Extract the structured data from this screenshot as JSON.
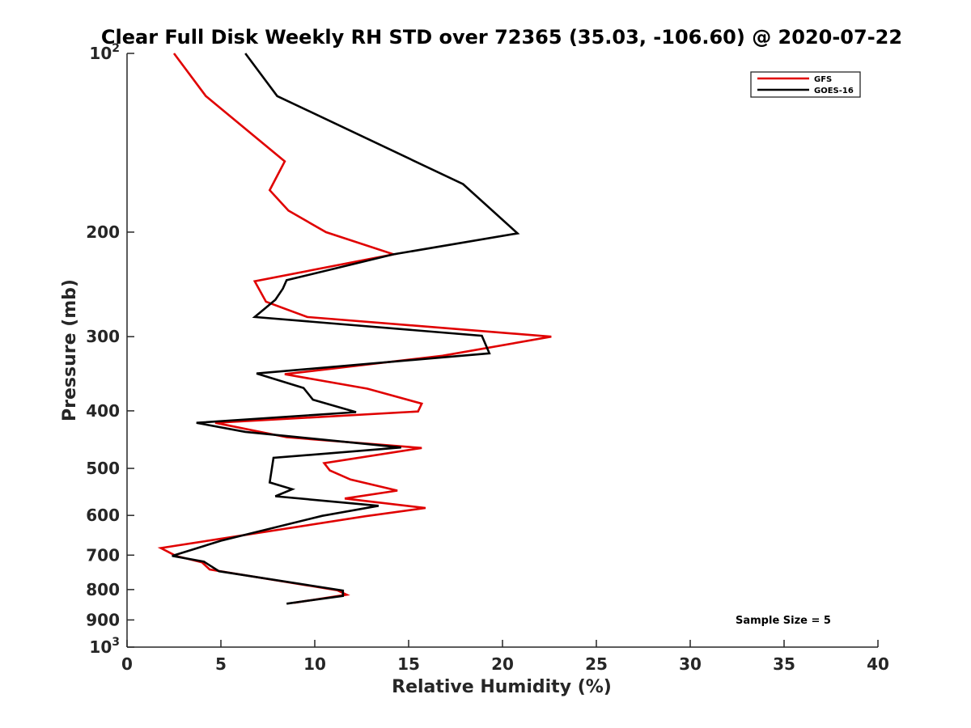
{
  "chart_data": {
    "type": "line",
    "title": "Clear Full Disk Weekly RH STD over 72365 (35.03, -106.60) @ 2020-07-22",
    "xlabel": "Relative Humidity (%)",
    "ylabel": "Pressure (mb)",
    "xlim": [
      0,
      40
    ],
    "ylim": [
      100,
      1000
    ],
    "yscale": "log",
    "y_reversed": true,
    "grid": false,
    "legend_position": "top-right",
    "x_ticks": [
      0,
      5,
      10,
      15,
      20,
      25,
      30,
      35,
      40
    ],
    "x_tick_labels": [
      "0",
      "5",
      "10",
      "15",
      "20",
      "25",
      "30",
      "35",
      "40"
    ],
    "y_ticks": [
      200,
      300,
      400,
      500,
      600,
      700,
      800,
      900
    ],
    "y_tick_labels": [
      "200",
      "300",
      "400",
      "500",
      "600",
      "700",
      "800",
      "900"
    ],
    "y_end_labels": [
      {
        "value": 100,
        "base": "10",
        "exp": "2"
      },
      {
        "value": 1000,
        "base": "10",
        "exp": "3"
      }
    ],
    "annotation": "Sample Size = 5",
    "series": [
      {
        "name": "GFS",
        "color": "#e00000",
        "x": [
          2.5,
          4.2,
          8.4,
          7.6,
          8.6,
          10.6,
          14.2,
          6.8,
          7.4,
          9.6,
          22.6,
          16.8,
          8.4,
          12.8,
          15.7,
          15.5,
          4.7,
          8.5,
          15.7,
          10.5,
          10.8,
          11.9,
          14.4,
          11.6,
          15.9,
          12.7,
          1.8,
          2.6,
          4.0,
          4.4,
          11.2,
          11.7,
          8.9
        ],
        "y": [
          100,
          118,
          152,
          170,
          184,
          200,
          218,
          242,
          262,
          278,
          300,
          323,
          347,
          367,
          389,
          401,
          419,
          443,
          462,
          490,
          504,
          522,
          545,
          562,
          583,
          602,
          681,
          702,
          720,
          740,
          802,
          816,
          842
        ]
      },
      {
        "name": "GOES-16",
        "color": "#000000",
        "x": [
          6.3,
          8.0,
          17.9,
          20.8,
          14.2,
          8.5,
          8.3,
          7.9,
          6.8,
          18.9,
          19.3,
          6.9,
          9.4,
          9.9,
          12.2,
          3.7,
          6.3,
          14.6,
          7.8,
          7.7,
          7.6,
          8.8,
          7.9,
          13.4,
          10.4,
          5.0,
          2.4,
          4.1,
          4.9,
          11.5,
          11.5,
          8.5
        ],
        "y": [
          100,
          118,
          166,
          201,
          218,
          241,
          249,
          260,
          278,
          299,
          320,
          346,
          366,
          383,
          402,
          419,
          434,
          461,
          480,
          504,
          528,
          542,
          557,
          578,
          601,
          662,
          702,
          718,
          745,
          803,
          820,
          845
        ]
      }
    ]
  }
}
